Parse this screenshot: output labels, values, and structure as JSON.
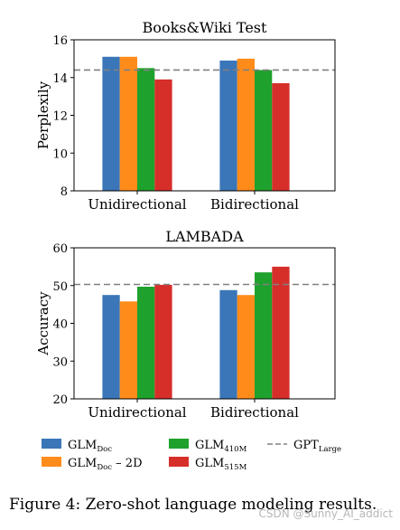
{
  "chart_data": [
    {
      "type": "bar",
      "title": "Books&Wiki Test",
      "xlabel": "",
      "ylabel": "Perplexily",
      "categories": [
        "Unidirectional",
        "Bidirectional"
      ],
      "ylim": [
        8,
        16
      ],
      "yticks": [
        8,
        10,
        12,
        14,
        16
      ],
      "series": [
        {
          "name": "GLM_Doc",
          "values": [
            15.1,
            14.9
          ]
        },
        {
          "name": "GLM_Doc – 2D",
          "values": [
            15.1,
            15.0
          ]
        },
        {
          "name": "GLM_410M",
          "values": [
            14.5,
            14.4
          ]
        },
        {
          "name": "GLM_515M",
          "values": [
            13.9,
            13.7
          ]
        }
      ],
      "reference_line": {
        "name": "GPT_Large",
        "value": 14.4,
        "style": "dashed"
      },
      "grid": false
    },
    {
      "type": "bar",
      "title": "LAMBADA",
      "xlabel": "",
      "ylabel": "Accuracy",
      "categories": [
        "Unidirectional",
        "Bidirectional"
      ],
      "ylim": [
        20,
        60
      ],
      "yticks": [
        20,
        30,
        40,
        50,
        60
      ],
      "series": [
        {
          "name": "GLM_Doc",
          "values": [
            47.5,
            48.8
          ]
        },
        {
          "name": "GLM_Doc – 2D",
          "values": [
            45.8,
            47.5
          ]
        },
        {
          "name": "GLM_410M",
          "values": [
            49.7,
            53.5
          ]
        },
        {
          "name": "GLM_515M",
          "values": [
            50.2,
            55.0
          ]
        }
      ],
      "reference_line": {
        "name": "GPT_Large",
        "value": 50.3,
        "style": "dashed"
      },
      "grid": false
    }
  ],
  "legend": {
    "placement": "bottom",
    "items": [
      {
        "base": "GLM",
        "sub": "Doc",
        "suffix": "",
        "color": "#3a76b8",
        "kind": "bar"
      },
      {
        "base": "GLM",
        "sub": "Doc",
        "suffix": " – 2D",
        "color": "#ff8c1a",
        "kind": "bar"
      },
      {
        "base": "GLM",
        "sub": "410M",
        "suffix": "",
        "color": "#1fa12d",
        "kind": "bar"
      },
      {
        "base": "GLM",
        "sub": "515M",
        "suffix": "",
        "color": "#d62f2a",
        "kind": "bar"
      },
      {
        "base": "GPT",
        "sub": "Large",
        "suffix": "",
        "color": "#808080",
        "kind": "dashed-line"
      }
    ]
  },
  "colors": {
    "GLM_Doc": "#3a76b8",
    "GLM_Doc – 2D": "#ff8c1a",
    "GLM_410M": "#1fa12d",
    "GLM_515M": "#d62f2a",
    "reference": "#808080"
  },
  "caption": "Figure 4: Zero-shot language modeling results.",
  "watermark": "CSDN @Sunny_AI_addict"
}
